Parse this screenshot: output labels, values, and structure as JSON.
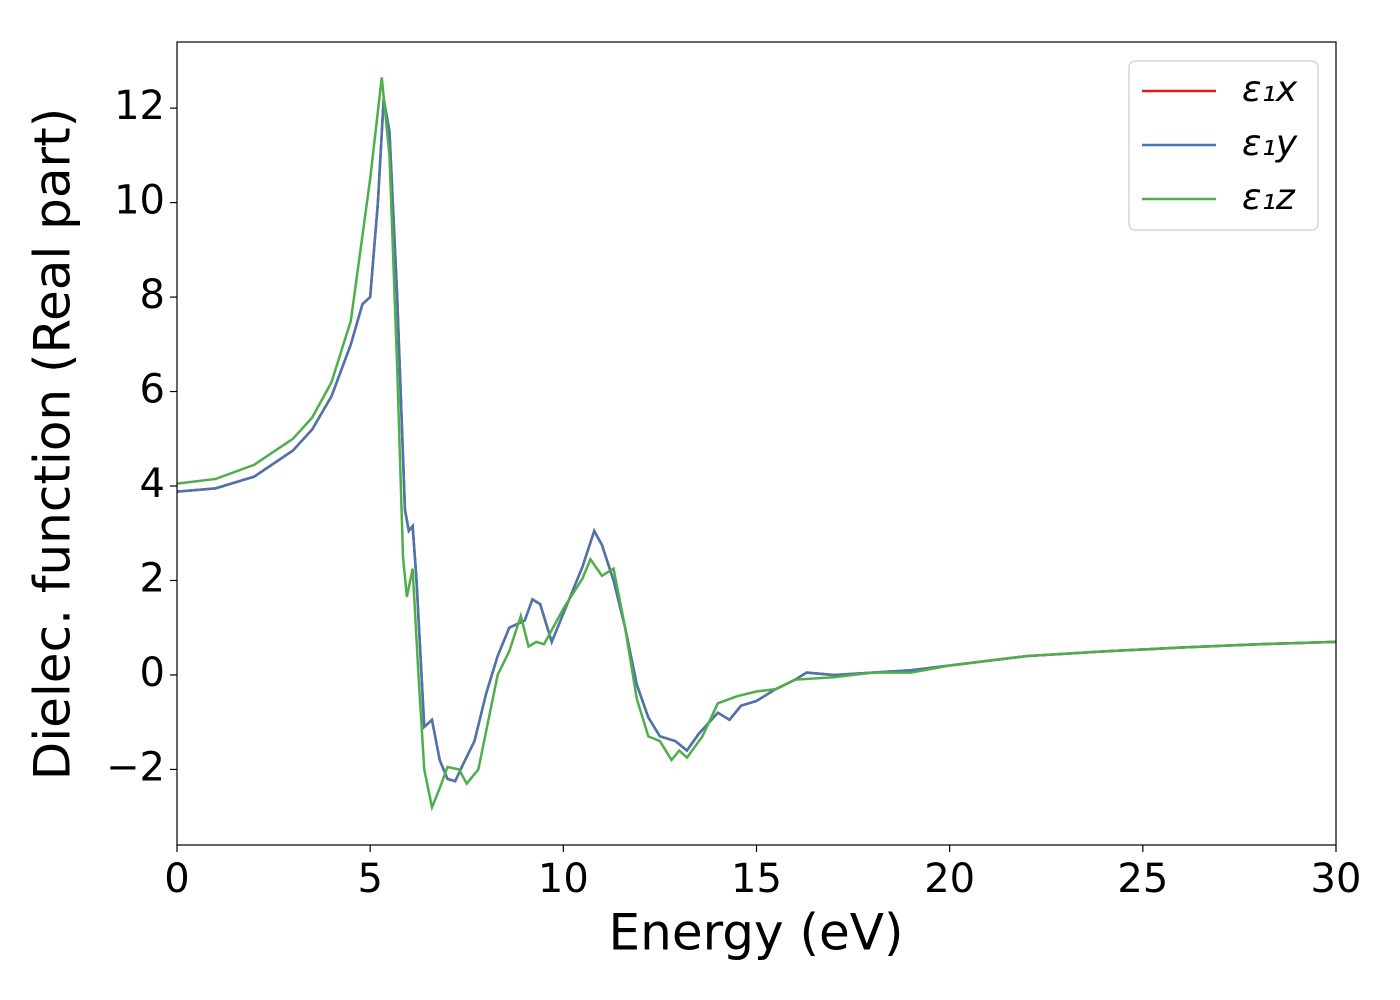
{
  "chart_data": {
    "type": "line",
    "xlabel": "Energy (eV)",
    "ylabel": "Dielec. function (Real part)",
    "xlim": [
      0,
      30
    ],
    "ylim": [
      -3.6,
      13.4
    ],
    "xticks": [
      0,
      5,
      10,
      15,
      20,
      25,
      30
    ],
    "yticks": [
      {
        "value": -2,
        "label": "−2"
      },
      0,
      2,
      4,
      6,
      8,
      10,
      12
    ],
    "legend": "upper right",
    "series": [
      {
        "name": "ε₁x",
        "color": "#e41a1c",
        "x": [
          0,
          1,
          2,
          3,
          3.5,
          4,
          4.5,
          4.8,
          5.0,
          5.2,
          5.35,
          5.5,
          5.7,
          5.9,
          6.0,
          6.1,
          6.2,
          6.4,
          6.6,
          6.8,
          7.0,
          7.2,
          7.4,
          7.7,
          8.0,
          8.3,
          8.6,
          9.0,
          9.2,
          9.4,
          9.7,
          10.0,
          10.5,
          10.8,
          11.0,
          11.3,
          11.6,
          11.9,
          12.2,
          12.5,
          12.9,
          13.2,
          13.5,
          14.0,
          14.3,
          14.6,
          15.0,
          15.5,
          16.0,
          16.3,
          17,
          18,
          19,
          20,
          21,
          22,
          24,
          26,
          28,
          30
        ],
        "values": [
          3.88,
          3.95,
          4.2,
          4.75,
          5.2,
          5.9,
          7.0,
          7.85,
          8.0,
          10.0,
          12.2,
          11.5,
          8.0,
          3.5,
          3.05,
          3.15,
          2.0,
          -1.1,
          -0.95,
          -1.8,
          -2.2,
          -2.25,
          -1.9,
          -1.4,
          -0.4,
          0.4,
          1.0,
          1.15,
          1.6,
          1.5,
          0.7,
          1.3,
          2.3,
          3.05,
          2.75,
          2.0,
          1.0,
          -0.2,
          -0.9,
          -1.3,
          -1.4,
          -1.6,
          -1.25,
          -0.8,
          -0.95,
          -0.65,
          -0.55,
          -0.3,
          -0.1,
          0.05,
          0.0,
          0.05,
          0.1,
          0.2,
          0.3,
          0.4,
          0.5,
          0.58,
          0.65,
          0.7
        ]
      },
      {
        "name": "ε₁y",
        "color": "#4a76ae",
        "x": [
          0,
          1,
          2,
          3,
          3.5,
          4,
          4.5,
          4.8,
          5.0,
          5.2,
          5.35,
          5.5,
          5.7,
          5.9,
          6.0,
          6.1,
          6.2,
          6.4,
          6.6,
          6.8,
          7.0,
          7.2,
          7.4,
          7.7,
          8.0,
          8.3,
          8.6,
          9.0,
          9.2,
          9.4,
          9.7,
          10.0,
          10.5,
          10.8,
          11.0,
          11.3,
          11.6,
          11.9,
          12.2,
          12.5,
          12.9,
          13.2,
          13.5,
          14.0,
          14.3,
          14.6,
          15.0,
          15.5,
          16.0,
          16.3,
          17,
          18,
          19,
          20,
          21,
          22,
          24,
          26,
          28,
          30
        ],
        "values": [
          3.88,
          3.95,
          4.2,
          4.75,
          5.2,
          5.9,
          7.0,
          7.85,
          8.0,
          10.0,
          12.2,
          11.5,
          8.0,
          3.5,
          3.05,
          3.15,
          2.0,
          -1.1,
          -0.95,
          -1.8,
          -2.2,
          -2.25,
          -1.9,
          -1.4,
          -0.4,
          0.4,
          1.0,
          1.15,
          1.6,
          1.5,
          0.7,
          1.3,
          2.3,
          3.05,
          2.75,
          2.0,
          1.0,
          -0.2,
          -0.9,
          -1.3,
          -1.4,
          -1.6,
          -1.25,
          -0.8,
          -0.95,
          -0.65,
          -0.55,
          -0.3,
          -0.1,
          0.05,
          0.0,
          0.05,
          0.1,
          0.2,
          0.3,
          0.4,
          0.5,
          0.58,
          0.65,
          0.7
        ]
      },
      {
        "name": "ε₁z",
        "color": "#4daf4a",
        "x": [
          0,
          1,
          2,
          3,
          3.5,
          4,
          4.5,
          5.0,
          5.3,
          5.5,
          5.7,
          5.85,
          5.95,
          6.1,
          6.25,
          6.4,
          6.6,
          6.8,
          7.0,
          7.3,
          7.5,
          7.8,
          8.0,
          8.3,
          8.6,
          8.9,
          9.1,
          9.3,
          9.5,
          10.0,
          10.5,
          10.7,
          11.0,
          11.3,
          11.6,
          11.9,
          12.2,
          12.5,
          12.8,
          13.0,
          13.2,
          13.6,
          14.0,
          14.5,
          15.0,
          15.5,
          16.0,
          17,
          18,
          19,
          20,
          21,
          22,
          24,
          26,
          28,
          30
        ],
        "values": [
          4.05,
          4.15,
          4.45,
          5.0,
          5.45,
          6.2,
          7.5,
          10.5,
          12.65,
          11.0,
          6.5,
          2.5,
          1.65,
          2.25,
          0.0,
          -2.0,
          -2.8,
          -2.4,
          -1.95,
          -2.0,
          -2.3,
          -2.0,
          -1.2,
          0.0,
          0.5,
          1.25,
          0.6,
          0.7,
          0.65,
          1.4,
          2.05,
          2.45,
          2.1,
          2.25,
          1.0,
          -0.5,
          -1.3,
          -1.4,
          -1.8,
          -1.6,
          -1.75,
          -1.3,
          -0.6,
          -0.45,
          -0.35,
          -0.3,
          -0.1,
          -0.05,
          0.05,
          0.05,
          0.2,
          0.3,
          0.4,
          0.5,
          0.58,
          0.65,
          0.7
        ]
      }
    ]
  }
}
